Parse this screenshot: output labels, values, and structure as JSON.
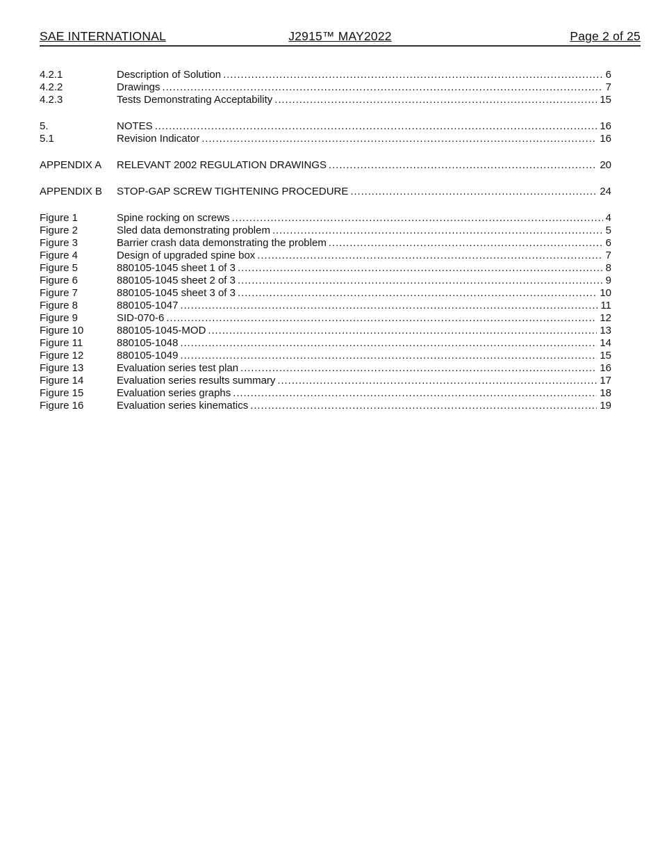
{
  "header": {
    "left": "SAE INTERNATIONAL",
    "center": "J2915™ MAY2022",
    "right": "Page 2 of 25"
  },
  "toc": {
    "sections": [
      {
        "rows": [
          {
            "label": "4.2.1",
            "title": "Description of Solution",
            "page": "6"
          },
          {
            "label": "4.2.2",
            "title": "Drawings",
            "page": "7"
          },
          {
            "label": "4.2.3",
            "title": "Tests Demonstrating Acceptability",
            "page": "15"
          }
        ]
      },
      {
        "rows": [
          {
            "label": "5.",
            "title": "NOTES",
            "page": "16"
          },
          {
            "label": "5.1",
            "title": "Revision Indicator",
            "page": "16"
          }
        ]
      },
      {
        "rows": [
          {
            "label": "APPENDIX A",
            "title": "RELEVANT 2002 REGULATION DRAWINGS",
            "page": "20"
          }
        ]
      },
      {
        "rows": [
          {
            "label": "APPENDIX B",
            "title": "STOP-GAP SCREW TIGHTENING PROCEDURE",
            "page": "24"
          }
        ]
      },
      {
        "rows": [
          {
            "label": "Figure 1",
            "title": "Spine rocking on screws",
            "page": "4"
          },
          {
            "label": "Figure 2",
            "title": "Sled data demonstrating problem",
            "page": "5"
          },
          {
            "label": "Figure 3",
            "title": "Barrier crash data demonstrating the problem",
            "page": "6"
          },
          {
            "label": "Figure 4",
            "title": "Design of upgraded spine box",
            "page": "7"
          },
          {
            "label": "Figure 5",
            "title": "880105-1045 sheet 1 of 3",
            "page": "8"
          },
          {
            "label": "Figure 6",
            "title": "880105-1045 sheet 2 of 3",
            "page": "9"
          },
          {
            "label": "Figure 7",
            "title": "880105-1045 sheet 3 of 3",
            "page": "10"
          },
          {
            "label": "Figure 8",
            "title": "880105-1047",
            "page": "11"
          },
          {
            "label": "Figure 9",
            "title": "SID-070-6",
            "page": "12"
          },
          {
            "label": "Figure 10",
            "title": "880105-1045-MOD",
            "page": "13"
          },
          {
            "label": "Figure 11",
            "title": "880105-1048",
            "page": "14"
          },
          {
            "label": "Figure 12",
            "title": "880105-1049",
            "page": "15"
          },
          {
            "label": "Figure 13",
            "title": "Evaluation series test plan",
            "page": "16"
          },
          {
            "label": "Figure 14",
            "title": "Evaluation series results summary",
            "page": "17"
          },
          {
            "label": "Figure 15",
            "title": "Evaluation series graphs",
            "page": "18"
          },
          {
            "label": "Figure 16",
            "title": "Evaluation series kinematics",
            "page": "19"
          }
        ]
      }
    ]
  }
}
